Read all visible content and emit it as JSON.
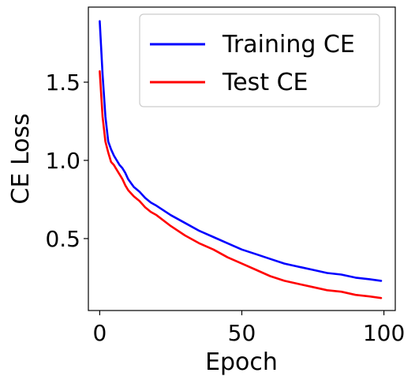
{
  "chart_data": {
    "type": "line",
    "title": "",
    "xlabel": "Epoch",
    "ylabel": "CE Loss",
    "xlim": [
      -4,
      104
    ],
    "ylim": [
      0.04,
      1.98
    ],
    "xticks": [
      0,
      50,
      100
    ],
    "xtick_labels": [
      "0",
      "50",
      "100"
    ],
    "yticks": [
      0.5,
      1.0,
      1.5
    ],
    "ytick_labels": [
      "0.5",
      "1.0",
      "1.5"
    ],
    "grid": false,
    "legend_position": "top-right",
    "series": [
      {
        "name": "Training CE",
        "color": "#0000ff",
        "x": [
          0,
          1,
          2,
          3,
          4,
          5,
          6,
          7,
          8,
          9,
          10,
          12,
          14,
          16,
          18,
          20,
          25,
          30,
          35,
          40,
          45,
          50,
          55,
          60,
          65,
          70,
          75,
          80,
          85,
          90,
          95,
          99
        ],
        "y": [
          1.89,
          1.55,
          1.28,
          1.12,
          1.07,
          1.03,
          1.0,
          0.97,
          0.95,
          0.92,
          0.88,
          0.83,
          0.8,
          0.76,
          0.73,
          0.71,
          0.65,
          0.6,
          0.55,
          0.51,
          0.47,
          0.43,
          0.4,
          0.37,
          0.34,
          0.32,
          0.3,
          0.28,
          0.27,
          0.25,
          0.24,
          0.23
        ]
      },
      {
        "name": "Test CE",
        "color": "#ff0000",
        "x": [
          0,
          1,
          2,
          3,
          4,
          5,
          6,
          7,
          8,
          9,
          10,
          12,
          14,
          16,
          18,
          20,
          25,
          30,
          35,
          40,
          45,
          50,
          55,
          60,
          65,
          70,
          75,
          80,
          85,
          90,
          95,
          99
        ],
        "y": [
          1.57,
          1.28,
          1.12,
          1.05,
          0.99,
          0.97,
          0.94,
          0.91,
          0.88,
          0.84,
          0.81,
          0.77,
          0.74,
          0.7,
          0.67,
          0.65,
          0.58,
          0.52,
          0.47,
          0.43,
          0.38,
          0.34,
          0.3,
          0.26,
          0.23,
          0.21,
          0.19,
          0.17,
          0.16,
          0.14,
          0.13,
          0.12
        ]
      }
    ]
  }
}
